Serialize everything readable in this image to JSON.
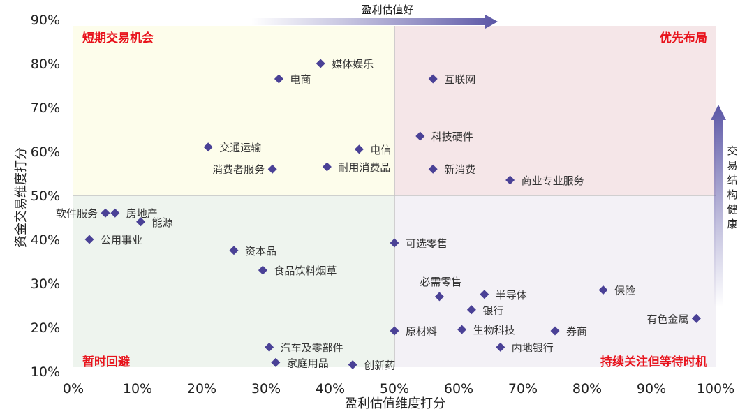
{
  "chart_data": {
    "type": "scatter",
    "xlabel": "盈利估值维度打分",
    "ylabel": "资金交易维度打分",
    "xlim": [
      0,
      100
    ],
    "ylim": [
      10,
      90
    ],
    "xticks": [
      "0%",
      "10%",
      "20%",
      "30%",
      "40%",
      "50%",
      "60%",
      "70%",
      "80%",
      "90%",
      "100%"
    ],
    "yticks": [
      "10%",
      "20%",
      "30%",
      "40%",
      "50%",
      "60%",
      "70%",
      "80%",
      "90%"
    ],
    "divider": {
      "x": 50,
      "y": 50
    },
    "quadrants": [
      {
        "name": "短期交易机会",
        "position": "top-left",
        "color": "#fdfdeb"
      },
      {
        "name": "优先布局",
        "position": "top-right",
        "color": "#f5e6e8"
      },
      {
        "name": "暂时回避",
        "position": "bottom-left",
        "color": "#eef4ee"
      },
      {
        "name": "持续关注但等待时机",
        "position": "bottom-right",
        "color": "#f3f1f6"
      }
    ],
    "x_arrow_label": "盈利估值好",
    "y_arrow_label": "交易结构健康",
    "marker_color": "#4a4196",
    "points": [
      {
        "name": "媒体娱乐",
        "x": 38.5,
        "y": 80,
        "label_pos": "right"
      },
      {
        "name": "电商",
        "x": 32,
        "y": 76.5,
        "label_pos": "right"
      },
      {
        "name": "互联网",
        "x": 56,
        "y": 76.5,
        "label_pos": "right"
      },
      {
        "name": "科技硬件",
        "x": 54,
        "y": 63.5,
        "label_pos": "right"
      },
      {
        "name": "交通运输",
        "x": 21,
        "y": 61,
        "label_pos": "right"
      },
      {
        "name": "电信",
        "x": 44.5,
        "y": 60.5,
        "label_pos": "right"
      },
      {
        "name": "耐用消费品",
        "x": 39.5,
        "y": 56.5,
        "label_pos": "right"
      },
      {
        "name": "消费者服务",
        "x": 31,
        "y": 56,
        "label_pos": "left"
      },
      {
        "name": "新消费",
        "x": 56,
        "y": 56,
        "label_pos": "right"
      },
      {
        "name": "商业专业服务",
        "x": 68,
        "y": 53.5,
        "label_pos": "right"
      },
      {
        "name": "软件服务",
        "x": 5,
        "y": 46,
        "label_pos": "left"
      },
      {
        "name": "房地产",
        "x": 6.5,
        "y": 46,
        "label_pos": "right"
      },
      {
        "name": "能源",
        "x": 10.5,
        "y": 44,
        "label_pos": "right"
      },
      {
        "name": "公用事业",
        "x": 2.5,
        "y": 40,
        "label_pos": "right"
      },
      {
        "name": "可选零售",
        "x": 50,
        "y": 39.2,
        "label_pos": "right"
      },
      {
        "name": "资本品",
        "x": 25,
        "y": 37.5,
        "label_pos": "right"
      },
      {
        "name": "食品饮料烟草",
        "x": 29.5,
        "y": 33,
        "label_pos": "right"
      },
      {
        "name": "保险",
        "x": 82.5,
        "y": 28.5,
        "label_pos": "right"
      },
      {
        "name": "半导体",
        "x": 64,
        "y": 27.5,
        "label_pos": "right"
      },
      {
        "name": "必需零售",
        "x": 57,
        "y": 27,
        "label_pos": "above"
      },
      {
        "name": "银行",
        "x": 62,
        "y": 24,
        "label_pos": "right"
      },
      {
        "name": "有色金属",
        "x": 97,
        "y": 22,
        "label_pos": "left"
      },
      {
        "name": "原材料",
        "x": 50,
        "y": 19.2,
        "label_pos": "right"
      },
      {
        "name": "生物科技",
        "x": 60.5,
        "y": 19.5,
        "label_pos": "right"
      },
      {
        "name": "券商",
        "x": 75,
        "y": 19.2,
        "label_pos": "right"
      },
      {
        "name": "内地银行",
        "x": 66.5,
        "y": 15.5,
        "label_pos": "right"
      },
      {
        "name": "汽车及零部件",
        "x": 30.5,
        "y": 15.5,
        "label_pos": "right"
      },
      {
        "name": "家庭用品",
        "x": 31.5,
        "y": 12,
        "label_pos": "right"
      },
      {
        "name": "创新药",
        "x": 43.5,
        "y": 11.5,
        "label_pos": "right"
      }
    ]
  }
}
